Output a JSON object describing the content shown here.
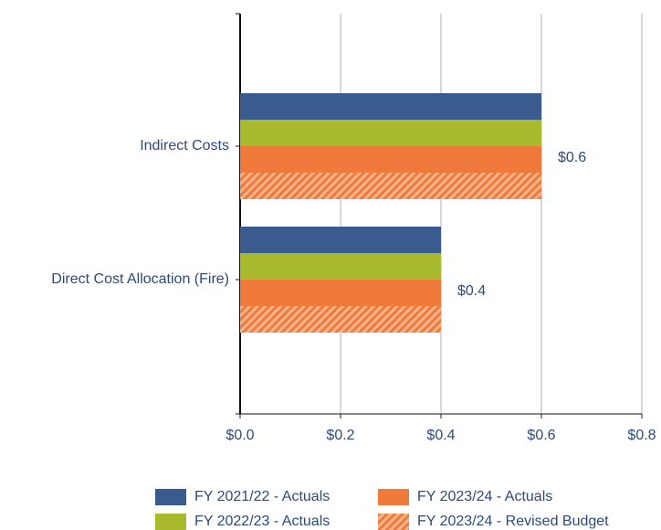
{
  "chart_data": {
    "type": "hbar",
    "categories": [
      "Indirect Costs",
      "Direct Cost Allocation (Fire)"
    ],
    "series": [
      {
        "name": "FY 2021/22 - Actuals",
        "color": "#3a5b8e",
        "values": [
          0.6,
          0.4
        ]
      },
      {
        "name": "FY 2022/23 - Actuals",
        "color": "#a9ba2c",
        "values": [
          0.6,
          0.4
        ]
      },
      {
        "name": "FY 2023/24 - Actuals",
        "color": "#f07a3b",
        "values": [
          0.6,
          0.4
        ]
      },
      {
        "name": "FY 2023/24 - Revised Budget",
        "color": "#f07a3b",
        "hatch": true,
        "values": [
          0.6,
          0.4
        ],
        "value_labels": [
          "$0.6",
          "$0.4"
        ]
      }
    ],
    "xlim": [
      0,
      0.8
    ],
    "xticks": [
      {
        "value": 0,
        "label": "$0.0"
      },
      {
        "value": 0.2,
        "label": "$0.2"
      },
      {
        "value": 0.4,
        "label": "$0.4"
      },
      {
        "value": 0.6,
        "label": "$0.6"
      },
      {
        "value": 0.8,
        "label": "$0.8"
      }
    ],
    "grid": true,
    "legend": "bottom"
  }
}
